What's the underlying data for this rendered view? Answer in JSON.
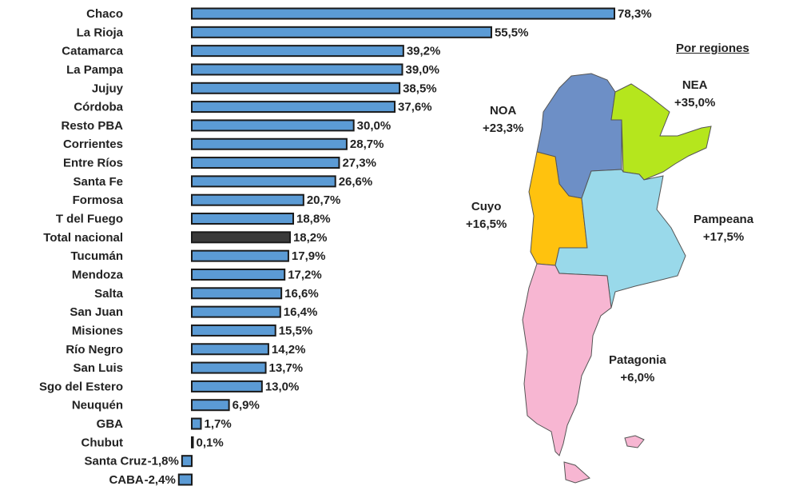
{
  "chart_data": {
    "type": "bar",
    "orientation": "horizontal",
    "categories": [
      "Chaco",
      "La Rioja",
      "Catamarca",
      "La Pampa",
      "Jujuy",
      "Córdoba",
      "Resto PBA",
      "Corrientes",
      "Entre Ríos",
      "Santa Fe",
      "Formosa",
      "T del Fuego",
      "Total nacional",
      "Tucumán",
      "Mendoza",
      "Salta",
      "San Juan",
      "Misiones",
      "Río Negro",
      "San Luis",
      "Sgo del Estero",
      "Neuquén",
      "GBA",
      "Chubut",
      "Santa Cruz",
      "CABA"
    ],
    "values": [
      78.3,
      55.5,
      39.2,
      39.0,
      38.5,
      37.6,
      30.0,
      28.7,
      27.3,
      26.6,
      20.7,
      18.8,
      18.2,
      17.9,
      17.2,
      16.6,
      16.4,
      15.5,
      14.2,
      13.7,
      13.0,
      6.9,
      1.7,
      0.1,
      -1.8,
      -2.4
    ],
    "labels": [
      "78,3%",
      "55,5%",
      "39,2%",
      "39,0%",
      "38,5%",
      "37,6%",
      "30,0%",
      "28,7%",
      "27,3%",
      "26,6%",
      "20,7%",
      "18,8%",
      "18,2%",
      "17,9%",
      "17,2%",
      "16,6%",
      "16,4%",
      "15,5%",
      "14,2%",
      "13,7%",
      "13,0%",
      "6,9%",
      "1,7%",
      "0,1%",
      "-1,8%",
      "-2,4%"
    ],
    "highlight": "Total nacional",
    "colors": {
      "bar": "#5b9bd5",
      "highlight": "#3a3a3a",
      "border": "#1a1a1a"
    }
  },
  "map": {
    "title": "Por regiones",
    "regions": [
      {
        "name": "NOA",
        "value": "+23,3%",
        "color": "#6d8fc6"
      },
      {
        "name": "NEA",
        "value": "+35,0%",
        "color": "#b5e61d"
      },
      {
        "name": "Cuyo",
        "value": "+16,5%",
        "color": "#ffc20e"
      },
      {
        "name": "Pampeana",
        "value": "+17,5%",
        "color": "#99d9ea"
      },
      {
        "name": "Patagonia",
        "value": "+6,0%",
        "color": "#f7b6d2"
      }
    ]
  }
}
